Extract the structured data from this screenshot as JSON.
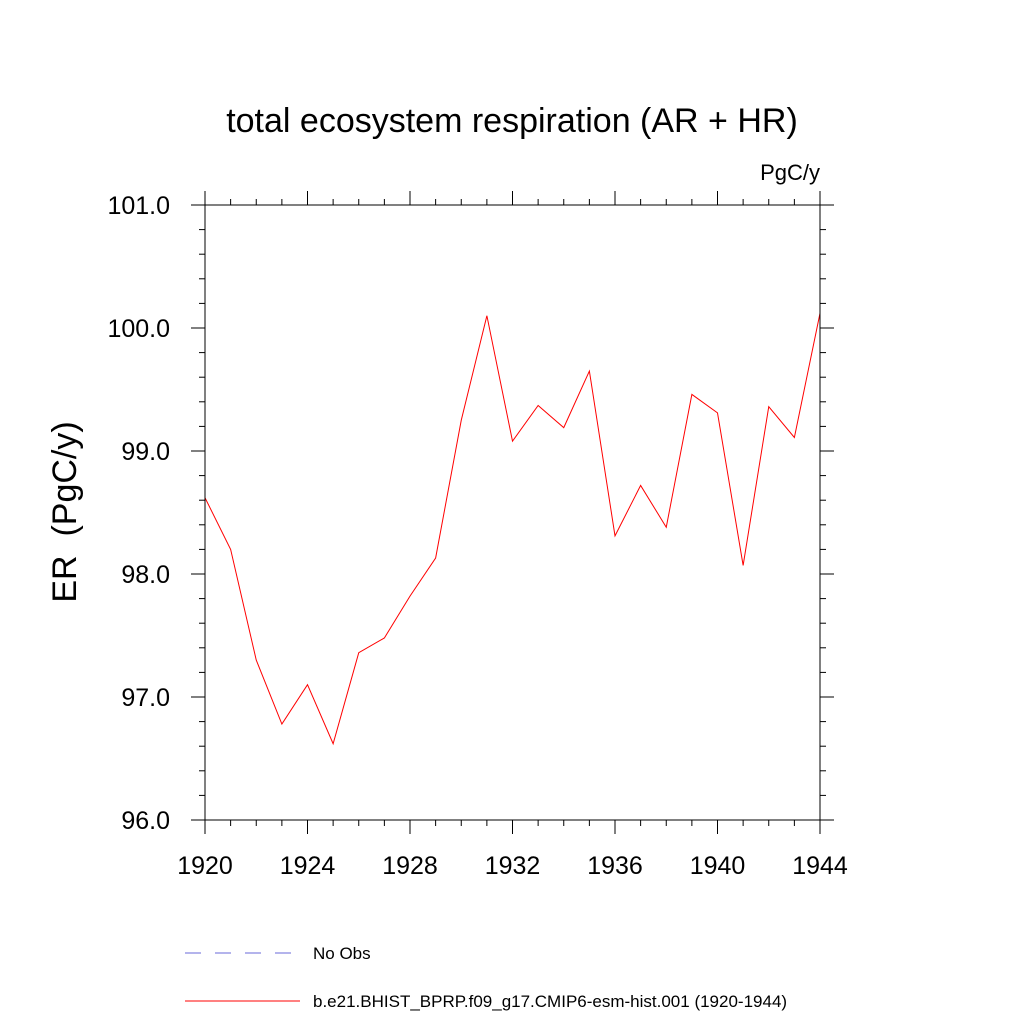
{
  "chart_data": {
    "type": "line",
    "title": "total ecosystem respiration (AR + HR)",
    "units": "PgC/y",
    "ylabel": "ER  (PgC/y)",
    "xlabel": "",
    "xlim": [
      1920,
      1944
    ],
    "ylim": [
      96.0,
      101.0
    ],
    "x_ticks": [
      1920,
      1924,
      1928,
      1932,
      1936,
      1940,
      1944
    ],
    "x_tick_labels": [
      "1920",
      "1924",
      "1928",
      "1932",
      "1936",
      "1940",
      "1944"
    ],
    "y_ticks": [
      96.0,
      97.0,
      98.0,
      99.0,
      100.0,
      101.0
    ],
    "y_tick_labels": [
      "96.0",
      "97.0",
      "98.0",
      "99.0",
      "100.0",
      "101.0"
    ],
    "grid": false,
    "legend_position": "bottom",
    "series": [
      {
        "name": "b.e21.BHIST_BPRP.f09_g17.CMIP6-esm-hist.001 (1920-1944)",
        "color": "#ff0000",
        "style": "solid",
        "x": [
          1920,
          1921,
          1922,
          1923,
          1924,
          1925,
          1926,
          1927,
          1928,
          1929,
          1930,
          1931,
          1932,
          1933,
          1934,
          1935,
          1936,
          1937,
          1938,
          1939,
          1940,
          1941,
          1942,
          1943,
          1944
        ],
        "y": [
          98.62,
          98.2,
          97.3,
          96.78,
          97.1,
          96.62,
          97.36,
          97.48,
          97.82,
          98.13,
          99.25,
          100.1,
          99.08,
          99.37,
          99.19,
          99.65,
          98.31,
          98.72,
          98.38,
          99.46,
          99.31,
          98.07,
          99.36,
          99.11,
          100.12
        ]
      }
    ],
    "legend": [
      {
        "label": "No Obs",
        "color": "#6a6ad8",
        "style": "dashed"
      },
      {
        "label": "b.e21.BHIST_BPRP.f09_g17.CMIP6-esm-hist.001 (1920-1944)",
        "color": "#ff0000",
        "style": "solid"
      }
    ]
  }
}
